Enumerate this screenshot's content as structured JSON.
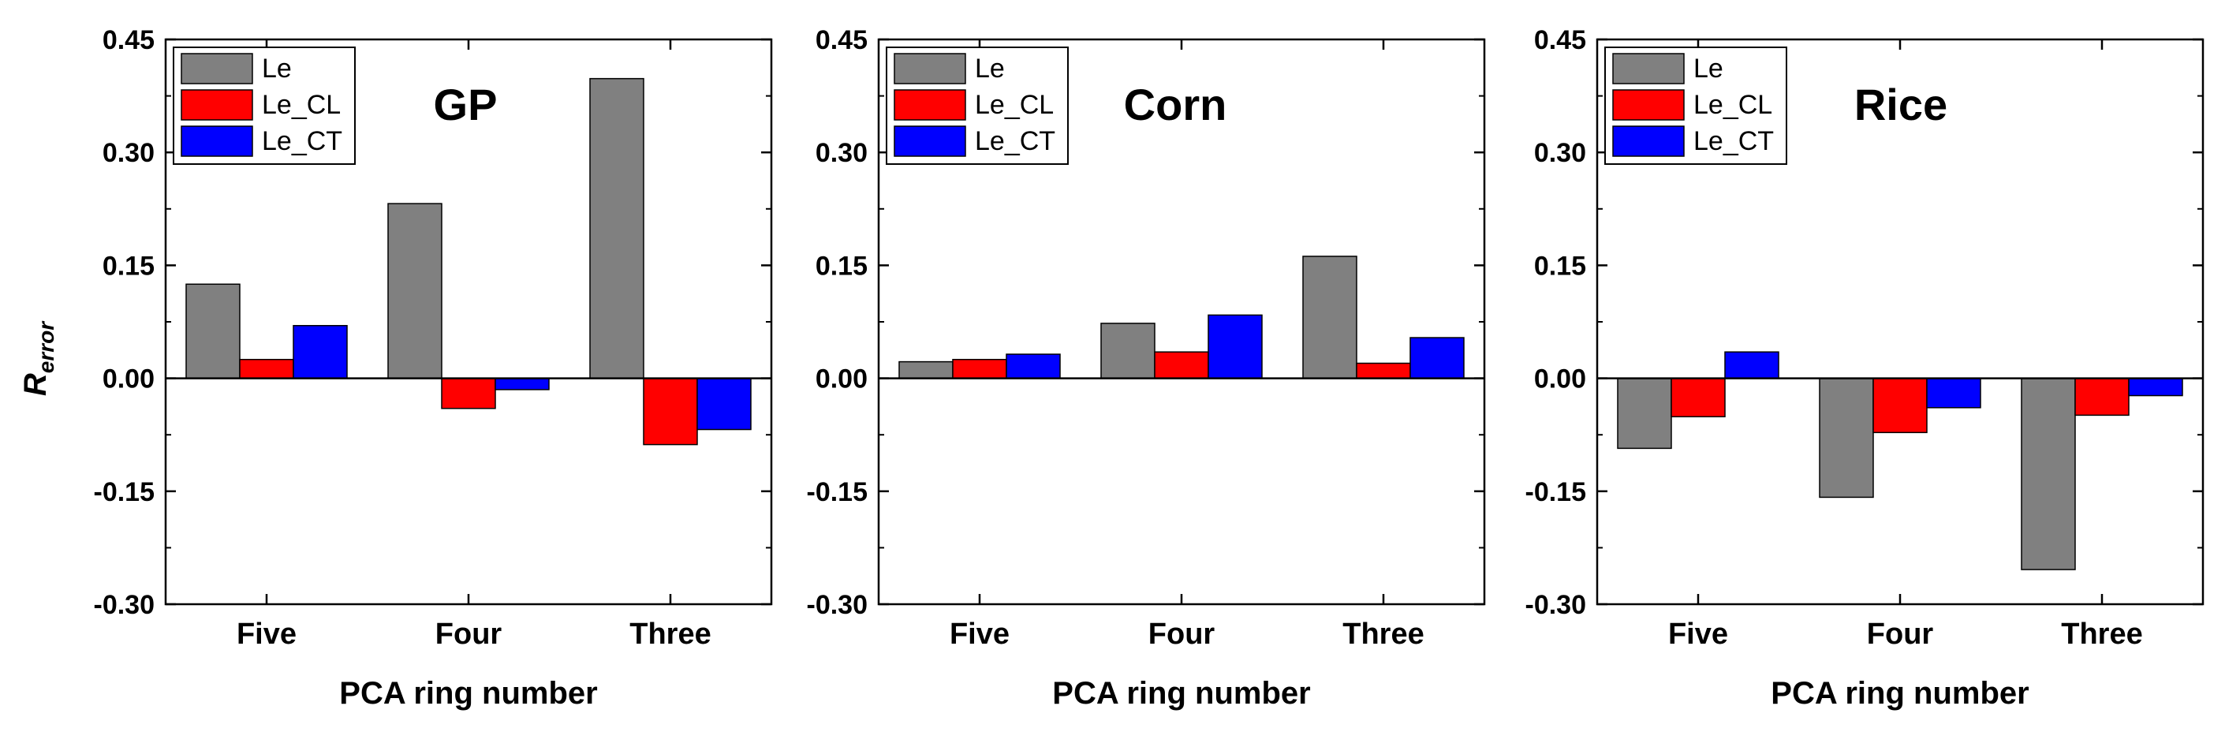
{
  "y_axis_label_main": "R",
  "y_axis_label_sub": "error",
  "colors": {
    "Le": "#808080",
    "Le_CL": "#ff0000",
    "Le_CT": "#0000ff"
  },
  "chart_data": [
    {
      "type": "bar",
      "title": "GP",
      "xlabel": "PCA ring number",
      "ylabel": "R_error",
      "categories": [
        "Five",
        "Four",
        "Three"
      ],
      "series": [
        {
          "name": "Le",
          "values": [
            0.125,
            0.232,
            0.398
          ]
        },
        {
          "name": "Le_CL",
          "values": [
            0.025,
            -0.04,
            -0.088
          ]
        },
        {
          "name": "Le_CT",
          "values": [
            0.07,
            -0.015,
            -0.068
          ]
        }
      ],
      "ylim": [
        -0.3,
        0.45
      ],
      "yticks": [
        "-0.30",
        "-0.15",
        "0.00",
        "0.15",
        "0.30",
        "0.45"
      ],
      "legend": "top-left"
    },
    {
      "type": "bar",
      "title": "Corn",
      "xlabel": "PCA ring number",
      "ylabel": "R_error",
      "categories": [
        "Five",
        "Four",
        "Three"
      ],
      "series": [
        {
          "name": "Le",
          "values": [
            0.022,
            0.073,
            0.162
          ]
        },
        {
          "name": "Le_CL",
          "values": [
            0.025,
            0.035,
            0.02
          ]
        },
        {
          "name": "Le_CT",
          "values": [
            0.032,
            0.084,
            0.054
          ]
        }
      ],
      "ylim": [
        -0.3,
        0.45
      ],
      "yticks": [
        "-0.30",
        "-0.15",
        "0.00",
        "0.15",
        "0.30",
        "0.45"
      ],
      "legend": "top-left"
    },
    {
      "type": "bar",
      "title": "Rice",
      "xlabel": "PCA ring number",
      "ylabel": "R_error",
      "categories": [
        "Five",
        "Four",
        "Three"
      ],
      "series": [
        {
          "name": "Le",
          "values": [
            -0.093,
            -0.158,
            -0.254
          ]
        },
        {
          "name": "Le_CL",
          "values": [
            -0.051,
            -0.072,
            -0.049
          ]
        },
        {
          "name": "Le_CT",
          "values": [
            0.035,
            -0.039,
            -0.023
          ]
        }
      ],
      "ylim": [
        -0.3,
        0.45
      ],
      "yticks": [
        "-0.30",
        "-0.15",
        "0.00",
        "0.15",
        "0.30",
        "0.45"
      ],
      "legend": "top-left"
    }
  ]
}
